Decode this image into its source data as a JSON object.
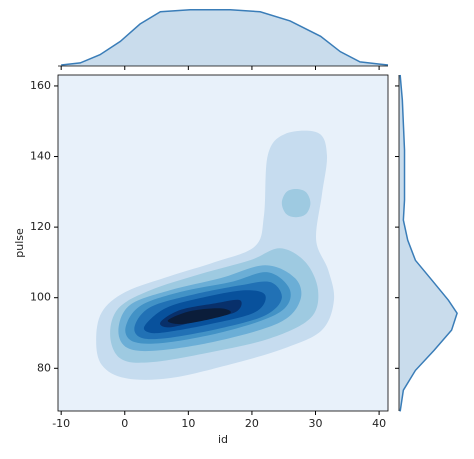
{
  "chart_data": {
    "type": "kde",
    "x_label": "id",
    "y_label": "pulse",
    "xlim": [
      -10.5,
      41.4
    ],
    "ylim": [
      67.9,
      163.1
    ],
    "xticks": [
      -10,
      0,
      10,
      20,
      30,
      40
    ],
    "yticks": [
      80,
      100,
      120,
      140,
      160
    ],
    "background": "#e8f1fa",
    "line_color": "#3a7db8",
    "fill_color": "#c9dcec",
    "contours": [
      {
        "color": "#c6dcef",
        "polygons": [
          [
            [
              -4.5,
              87.9
            ],
            [
              -3.6,
              95.9
            ],
            [
              0.1,
              101.6
            ],
            [
              7.1,
              106.1
            ],
            [
              14.2,
              110.1
            ],
            [
              20.5,
              114.6
            ],
            [
              21.9,
              123.4
            ],
            [
              22.5,
              140.4
            ],
            [
              25.2,
              146.4
            ],
            [
              30.4,
              146.7
            ],
            [
              31.8,
              140.4
            ],
            [
              31.0,
              129.1
            ],
            [
              30.1,
              116.3
            ],
            [
              32.0,
              107.8
            ],
            [
              32.9,
              99.3
            ],
            [
              31.0,
              90.8
            ],
            [
              25.2,
              85.7
            ],
            [
              16.6,
              81.1
            ],
            [
              7.1,
              77.2
            ],
            [
              0.1,
              77.2
            ],
            [
              -3.6,
              80.9
            ]
          ]
        ]
      },
      {
        "color": "#9ecae1",
        "polygons": [
          [
            [
              -2.3,
              89.4
            ],
            [
              -1.0,
              97.0
            ],
            [
              4.0,
              102.1
            ],
            [
              11.9,
              106.7
            ],
            [
              19.7,
              110.6
            ],
            [
              24.4,
              114.0
            ],
            [
              28.4,
              110.1
            ],
            [
              30.4,
              102.1
            ],
            [
              29.2,
              94.2
            ],
            [
              22.9,
              88.5
            ],
            [
              13.4,
              84.5
            ],
            [
              4.0,
              81.7
            ],
            [
              -0.7,
              82.8
            ]
          ],
          [
            [
              24.7,
              126.8
            ],
            [
              25.4,
              129.9
            ],
            [
              26.9,
              130.8
            ],
            [
              28.5,
              129.9
            ],
            [
              29.2,
              126.8
            ],
            [
              28.5,
              123.7
            ],
            [
              26.9,
              122.8
            ],
            [
              25.4,
              123.7
            ]
          ]
        ]
      },
      {
        "color": "#6baed6",
        "polygons": [
          [
            [
              -1.0,
              90.8
            ],
            [
              0.8,
              97.9
            ],
            [
              7.1,
              102.1
            ],
            [
              15.0,
              105.5
            ],
            [
              22.1,
              109.2
            ],
            [
              26.8,
              105.5
            ],
            [
              27.6,
              99.3
            ],
            [
              24.4,
              93.0
            ],
            [
              15.0,
              87.9
            ],
            [
              5.6,
              85.1
            ],
            [
              0.5,
              85.7
            ]
          ]
        ]
      },
      {
        "color": "#4292c6",
        "polygons": [
          [
            [
              0.1,
              91.3
            ],
            [
              2.4,
              97.6
            ],
            [
              8.7,
              101.6
            ],
            [
              16.6,
              104.4
            ],
            [
              22.5,
              107.2
            ],
            [
              26.0,
              102.1
            ],
            [
              24.4,
              95.9
            ],
            [
              16.6,
              90.8
            ],
            [
              7.1,
              87.4
            ],
            [
              1.6,
              87.4
            ]
          ]
        ]
      },
      {
        "color": "#2171b5",
        "polygons": [
          [
            [
              1.6,
              92.2
            ],
            [
              4.0,
              97.3
            ],
            [
              10.3,
              100.7
            ],
            [
              18.1,
              103.5
            ],
            [
              22.9,
              104.4
            ],
            [
              24.7,
              99.9
            ],
            [
              22.1,
              95.0
            ],
            [
              15.0,
              91.3
            ],
            [
              6.4,
              88.5
            ],
            [
              2.4,
              88.8
            ]
          ]
        ]
      },
      {
        "color": "#08519c",
        "polygons": [
          [
            [
              3.2,
              92.2
            ],
            [
              6.4,
              97.0
            ],
            [
              11.9,
              99.9
            ],
            [
              18.9,
              102.1
            ],
            [
              22.1,
              100.7
            ],
            [
              20.5,
              95.9
            ],
            [
              13.4,
              92.5
            ],
            [
              6.4,
              90.2
            ],
            [
              3.7,
              90.2
            ]
          ]
        ]
      },
      {
        "color": "#08306b",
        "polygons": [
          [
            [
              5.6,
              93.0
            ],
            [
              8.7,
              96.5
            ],
            [
              14.2,
              98.4
            ],
            [
              18.1,
              99.3
            ],
            [
              17.4,
              95.9
            ],
            [
              11.9,
              93.6
            ],
            [
              7.1,
              91.6
            ]
          ]
        ]
      },
      {
        "color": "#0b1d3a",
        "polygons": [
          [
            [
              6.8,
              93.6
            ],
            [
              10.3,
              96.2
            ],
            [
              15.0,
              97.0
            ],
            [
              16.6,
              95.6
            ],
            [
              12.6,
              93.6
            ],
            [
              8.7,
              92.5
            ]
          ]
        ]
      }
    ],
    "marginal_x": {
      "x": [
        -10,
        -7.0,
        -3.9,
        -0.7,
        2.4,
        5.6,
        10.3,
        16.6,
        21.3,
        26.0,
        30.8,
        33.9,
        37.0,
        41.4
      ],
      "density": [
        0.0006,
        0.0018,
        0.0066,
        0.0144,
        0.0246,
        0.0318,
        0.033,
        0.033,
        0.0318,
        0.0264,
        0.0174,
        0.0084,
        0.0024,
        0.0006
      ],
      "ylim": [
        0,
        0.034
      ]
    },
    "marginal_y": {
      "y": [
        163.1,
        156.0,
        141.8,
        127.7,
        122.0,
        116.3,
        110.6,
        105.0,
        99.3,
        95.6,
        90.8,
        85.1,
        79.4,
        73.8,
        67.8
      ],
      "density": [
        0.0008,
        0.0023,
        0.0038,
        0.0038,
        0.003,
        0.006,
        0.0113,
        0.0226,
        0.034,
        0.04,
        0.0362,
        0.0242,
        0.0113,
        0.003,
        0.0008
      ],
      "xlim": [
        0,
        0.042
      ]
    }
  }
}
